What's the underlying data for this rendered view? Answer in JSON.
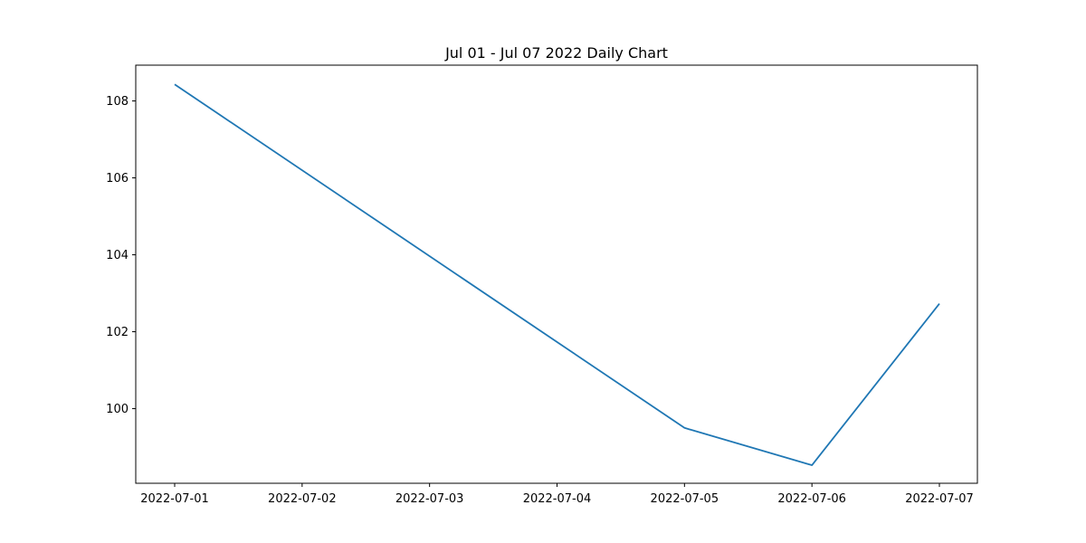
{
  "chart_data": {
    "type": "line",
    "title": "Jul 01 - Jul 07 2022 Daily Chart",
    "xlabel": "",
    "ylabel": "",
    "x": [
      "2022-07-01",
      "2022-07-02",
      "2022-07-03",
      "2022-07-04",
      "2022-07-05",
      "2022-07-06",
      "2022-07-07"
    ],
    "series": [
      {
        "x": [
          "2022-07-01",
          "2022-07-05",
          "2022-07-06",
          "2022-07-07"
        ],
        "values": [
          108.43,
          99.5,
          98.53,
          102.73
        ],
        "color": "#1f77b4"
      }
    ],
    "yticks": [
      100,
      102,
      104,
      106,
      108
    ],
    "ylim": [
      98.06,
      108.93
    ],
    "grid": false,
    "legend": "none"
  }
}
